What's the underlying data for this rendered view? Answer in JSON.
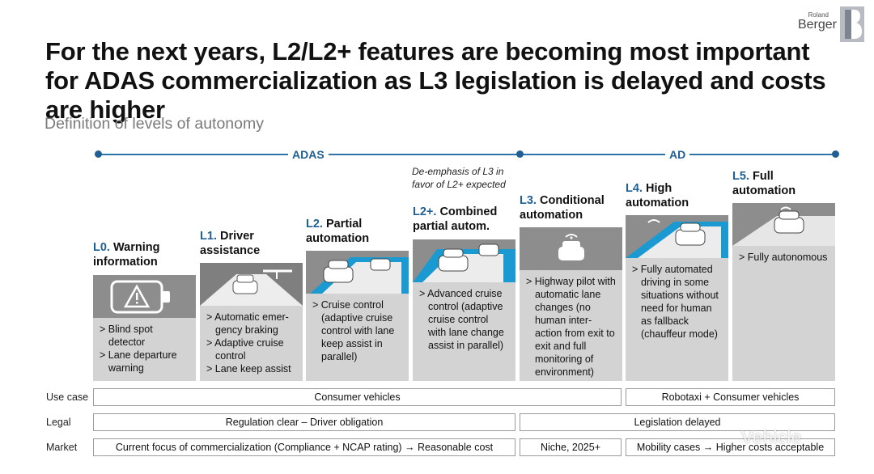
{
  "logo": {
    "small": "Roland",
    "main": "Berger"
  },
  "title": "For the next years, L2/L2+ features are becoming most important for ADAS commercialization as L3 legislation is delayed and costs are higher",
  "subtitle": "Definition of levels of autonomy",
  "axis": {
    "adas_label": "ADAS",
    "ad_label": "AD"
  },
  "note": "De-emphasis of L3 in favor of L2+ expected",
  "levels": [
    {
      "code": "L0.",
      "name_line1": "Warning",
      "name_line2": "information",
      "bullets": [
        "> Blind spot detector",
        "> Lane departure warning"
      ]
    },
    {
      "code": "L1.",
      "name_line1": "Driver",
      "name_line2": "assistance",
      "bullets": [
        "> Automatic emer-gency braking",
        "> Adaptive cruise control",
        "> Lane keep assist"
      ]
    },
    {
      "code": "L2.",
      "name_line1": "Partial",
      "name_line2": "automation",
      "bullets": [
        "> Cruise control (adaptive cruise control with lane keep assist in parallel)"
      ]
    },
    {
      "code": "L2+.",
      "name_line1": "Combined",
      "name_line2": "partial autom.",
      "bullets": [
        "> Advanced cruise control (adaptive cruise control with lane change assist in parallel)"
      ]
    },
    {
      "code": "L3.",
      "name_line1": "Conditional",
      "name_line2": "automation",
      "bullets": [
        "> Highway pilot with automatic lane changes (no human inter-action from exit to exit and full monitoring of environment)"
      ]
    },
    {
      "code": "L4.",
      "name_line1": "High",
      "name_line2": "automation",
      "bullets": [
        "> Fully automated driving in some situations without need for human as fallback (chauffeur mode)"
      ]
    },
    {
      "code": "L5.",
      "name_line1": "Full",
      "name_line2": "automation",
      "bullets": [
        "> Fully autonomous"
      ]
    }
  ],
  "rows": {
    "use_case": {
      "label": "Use case",
      "cells": [
        "Consumer vehicles",
        "Robotaxi + Consumer vehicles"
      ]
    },
    "legal": {
      "label": "Legal",
      "cells": [
        "Regulation clear – Driver obligation",
        "Legislation delayed"
      ]
    },
    "market": {
      "label": "Market",
      "cells": [
        "Current focus of commercialization (Compliance + NCAP rating) → Reasonable cost",
        "Niche, 2025+",
        "Mobility cases → Higher costs acceptable"
      ]
    }
  },
  "watermark": "Vehicle",
  "colors": {
    "accent": "#1f5f93",
    "card": "#d3d3d3",
    "picture": "#8d8d8d",
    "lane": "#1a9ad0"
  }
}
